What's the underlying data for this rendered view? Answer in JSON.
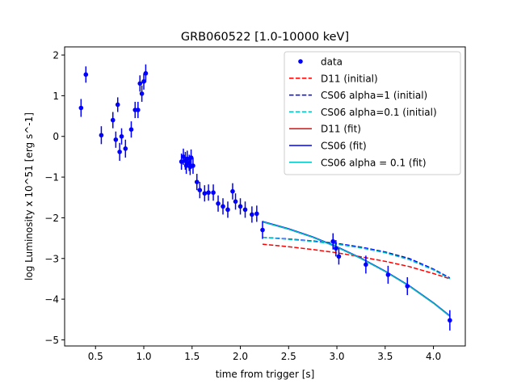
{
  "chart_data": {
    "type": "scatter",
    "title": "GRB060522 [1.0-10000 keV]",
    "xlabel": "time from trigger [s]",
    "ylabel": "log Luminosity x 10^51 [erg s^-1]",
    "xlim": [
      0.18,
      4.33
    ],
    "ylim": [
      -5.15,
      2.2
    ],
    "xticks": [
      0.5,
      1.0,
      1.5,
      2.0,
      2.5,
      3.0,
      3.5,
      4.0
    ],
    "xtick_labels": [
      "0.5",
      "1.0",
      "1.5",
      "2.0",
      "2.5",
      "3.0",
      "3.5",
      "4.0"
    ],
    "yticks": [
      -5,
      -4,
      -3,
      -2,
      -1,
      0,
      1,
      2
    ],
    "ytick_labels": [
      "−5",
      "−4",
      "−3",
      "−2",
      "−1",
      "0",
      "1",
      "2"
    ],
    "grid": false,
    "legend_position": "top-right",
    "legend": [
      {
        "label": "data",
        "color": "#0000ff",
        "style": "marker"
      },
      {
        "label": "D11 (initial)",
        "color": "#ff0000",
        "style": "dashed"
      },
      {
        "label": "CS06 alpha=1 (initial)",
        "color": "#0000ff",
        "style": "dashed"
      },
      {
        "label": "CS06 alpha=0.1 (initial)",
        "color": "#00bfbf",
        "style": "dashed"
      },
      {
        "label": "D11 (fit)",
        "color": "#ff0000",
        "style": "solid"
      },
      {
        "label": "CS06 (fit)",
        "color": "#0000ff",
        "style": "solid"
      },
      {
        "label": "CS06 alpha = 0.1 (fit)",
        "color": "#00bfbf",
        "style": "solid"
      }
    ],
    "data_series": {
      "name": "data",
      "color": "#0000ff",
      "points": [
        {
          "x": 0.35,
          "y": 0.7,
          "err": 0.22
        },
        {
          "x": 0.4,
          "y": 1.52,
          "err": 0.2
        },
        {
          "x": 0.56,
          "y": 0.03,
          "err": 0.22
        },
        {
          "x": 0.68,
          "y": 0.4,
          "err": 0.2
        },
        {
          "x": 0.71,
          "y": -0.08,
          "err": 0.2
        },
        {
          "x": 0.73,
          "y": 0.78,
          "err": 0.18
        },
        {
          "x": 0.75,
          "y": -0.38,
          "err": 0.22
        },
        {
          "x": 0.77,
          "y": 0.0,
          "err": 0.2
        },
        {
          "x": 0.81,
          "y": -0.3,
          "err": 0.22
        },
        {
          "x": 0.87,
          "y": 0.17,
          "err": 0.2
        },
        {
          "x": 0.91,
          "y": 0.65,
          "err": 0.2
        },
        {
          "x": 0.94,
          "y": 0.65,
          "err": 0.2
        },
        {
          "x": 0.96,
          "y": 1.3,
          "err": 0.2
        },
        {
          "x": 0.98,
          "y": 1.05,
          "err": 0.2
        },
        {
          "x": 1.0,
          "y": 1.35,
          "err": 0.2
        },
        {
          "x": 1.02,
          "y": 1.55,
          "err": 0.22
        },
        {
          "x": 1.39,
          "y": -0.62,
          "err": 0.2
        },
        {
          "x": 1.41,
          "y": -0.5,
          "err": 0.2
        },
        {
          "x": 1.43,
          "y": -0.6,
          "err": 0.22
        },
        {
          "x": 1.44,
          "y": -0.72,
          "err": 0.2
        },
        {
          "x": 1.45,
          "y": -0.55,
          "err": 0.2
        },
        {
          "x": 1.47,
          "y": -0.65,
          "err": 0.2
        },
        {
          "x": 1.48,
          "y": -0.75,
          "err": 0.2
        },
        {
          "x": 1.49,
          "y": -0.52,
          "err": 0.2
        },
        {
          "x": 1.51,
          "y": -0.72,
          "err": 0.2
        },
        {
          "x": 1.55,
          "y": -1.12,
          "err": 0.2
        },
        {
          "x": 1.58,
          "y": -1.32,
          "err": 0.2
        },
        {
          "x": 1.63,
          "y": -1.4,
          "err": 0.2
        },
        {
          "x": 1.67,
          "y": -1.38,
          "err": 0.2
        },
        {
          "x": 1.72,
          "y": -1.38,
          "err": 0.2
        },
        {
          "x": 1.77,
          "y": -1.65,
          "err": 0.2
        },
        {
          "x": 1.82,
          "y": -1.72,
          "err": 0.2
        },
        {
          "x": 1.87,
          "y": -1.8,
          "err": 0.2
        },
        {
          "x": 1.92,
          "y": -1.35,
          "err": 0.2
        },
        {
          "x": 1.95,
          "y": -1.6,
          "err": 0.2
        },
        {
          "x": 2.0,
          "y": -1.72,
          "err": 0.2
        },
        {
          "x": 2.05,
          "y": -1.8,
          "err": 0.2
        },
        {
          "x": 2.12,
          "y": -1.92,
          "err": 0.2
        },
        {
          "x": 2.17,
          "y": -1.9,
          "err": 0.2
        },
        {
          "x": 2.23,
          "y": -2.3,
          "err": 0.22
        },
        {
          "x": 2.96,
          "y": -2.58,
          "err": 0.2
        },
        {
          "x": 2.99,
          "y": -2.75,
          "err": 0.2
        },
        {
          "x": 3.02,
          "y": -2.95,
          "err": 0.2
        },
        {
          "x": 3.3,
          "y": -3.15,
          "err": 0.22
        },
        {
          "x": 3.53,
          "y": -3.4,
          "err": 0.22
        },
        {
          "x": 3.73,
          "y": -3.68,
          "err": 0.22
        },
        {
          "x": 4.17,
          "y": -4.52,
          "err": 0.25
        }
      ]
    },
    "series": [
      {
        "name": "D11 (initial)",
        "color": "#ff0000",
        "style": "dashed",
        "x": [
          2.23,
          2.5,
          2.75,
          3.0,
          3.25,
          3.5,
          3.75,
          4.0,
          4.17
        ],
        "y": [
          -2.65,
          -2.71,
          -2.78,
          -2.86,
          -2.96,
          -3.07,
          -3.2,
          -3.37,
          -3.5
        ]
      },
      {
        "name": "CS06 alpha=1 (initial)",
        "color": "#0000ff",
        "style": "dashed",
        "x": [
          2.23,
          2.5,
          2.75,
          3.0,
          3.25,
          3.5,
          3.75,
          4.0,
          4.17
        ],
        "y": [
          -2.48,
          -2.52,
          -2.57,
          -2.63,
          -2.72,
          -2.84,
          -3.0,
          -3.26,
          -3.48
        ]
      },
      {
        "name": "CS06 alpha=0.1 (initial)",
        "color": "#00bfbf",
        "style": "dashed",
        "x": [
          2.23,
          2.5,
          2.75,
          3.0,
          3.25,
          3.5,
          3.75,
          4.0,
          4.17
        ],
        "y": [
          -2.48,
          -2.53,
          -2.58,
          -2.65,
          -2.74,
          -2.86,
          -3.03,
          -3.28,
          -3.5
        ]
      },
      {
        "name": "D11 (fit)",
        "color": "#ff0000",
        "style": "solid",
        "x": [
          2.23,
          2.5,
          2.75,
          3.0,
          3.25,
          3.5,
          3.75,
          4.0,
          4.17
        ],
        "y": [
          -2.1,
          -2.28,
          -2.48,
          -2.72,
          -3.0,
          -3.32,
          -3.68,
          -4.1,
          -4.42
        ]
      },
      {
        "name": "CS06 (fit)",
        "color": "#0000ff",
        "style": "solid",
        "x": [
          2.23,
          2.5,
          2.75,
          3.0,
          3.25,
          3.5,
          3.75,
          4.0,
          4.17
        ],
        "y": [
          -2.09,
          -2.27,
          -2.47,
          -2.71,
          -2.99,
          -3.31,
          -3.67,
          -4.09,
          -4.41
        ]
      },
      {
        "name": "CS06 alpha = 0.1 (fit)",
        "color": "#00bfbf",
        "style": "solid",
        "x": [
          2.23,
          2.5,
          2.75,
          3.0,
          3.25,
          3.5,
          3.75,
          4.0,
          4.17
        ],
        "y": [
          -2.1,
          -2.28,
          -2.48,
          -2.72,
          -3.0,
          -3.32,
          -3.68,
          -4.1,
          -4.42
        ]
      }
    ]
  }
}
